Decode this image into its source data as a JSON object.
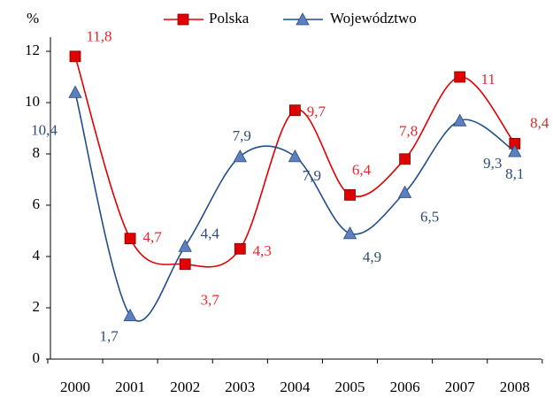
{
  "chart_data": {
    "type": "line",
    "y_axis_label": "%",
    "categories": [
      "2000",
      "2001",
      "2002",
      "2003",
      "2004",
      "2005",
      "2006",
      "2007",
      "2008"
    ],
    "series": [
      {
        "name": "Polska",
        "color": "#e00000",
        "marker": "square",
        "values": [
          11.8,
          4.7,
          3.7,
          4.3,
          9.7,
          6.4,
          7.8,
          11,
          8.4
        ],
        "value_labels": [
          "11,8",
          "4,7",
          "3,7",
          "4,3",
          "9,7",
          "6,4",
          "7,8",
          "11",
          "8,4"
        ]
      },
      {
        "name": "Województwo",
        "color": "#1f4e8c",
        "marker": "triangle",
        "values": [
          10.4,
          1.7,
          4.4,
          7.9,
          7.9,
          4.9,
          6.5,
          9.3,
          8.1
        ],
        "value_labels": [
          "10,4",
          "1,7",
          "4,4",
          "7,9",
          "7,9",
          "4,9",
          "6,5",
          "9,3",
          "8,1"
        ]
      }
    ],
    "ylim": [
      0,
      12
    ],
    "yticks": [
      0,
      2,
      4,
      6,
      8,
      10,
      12
    ],
    "smooth": true,
    "legend": "top"
  }
}
